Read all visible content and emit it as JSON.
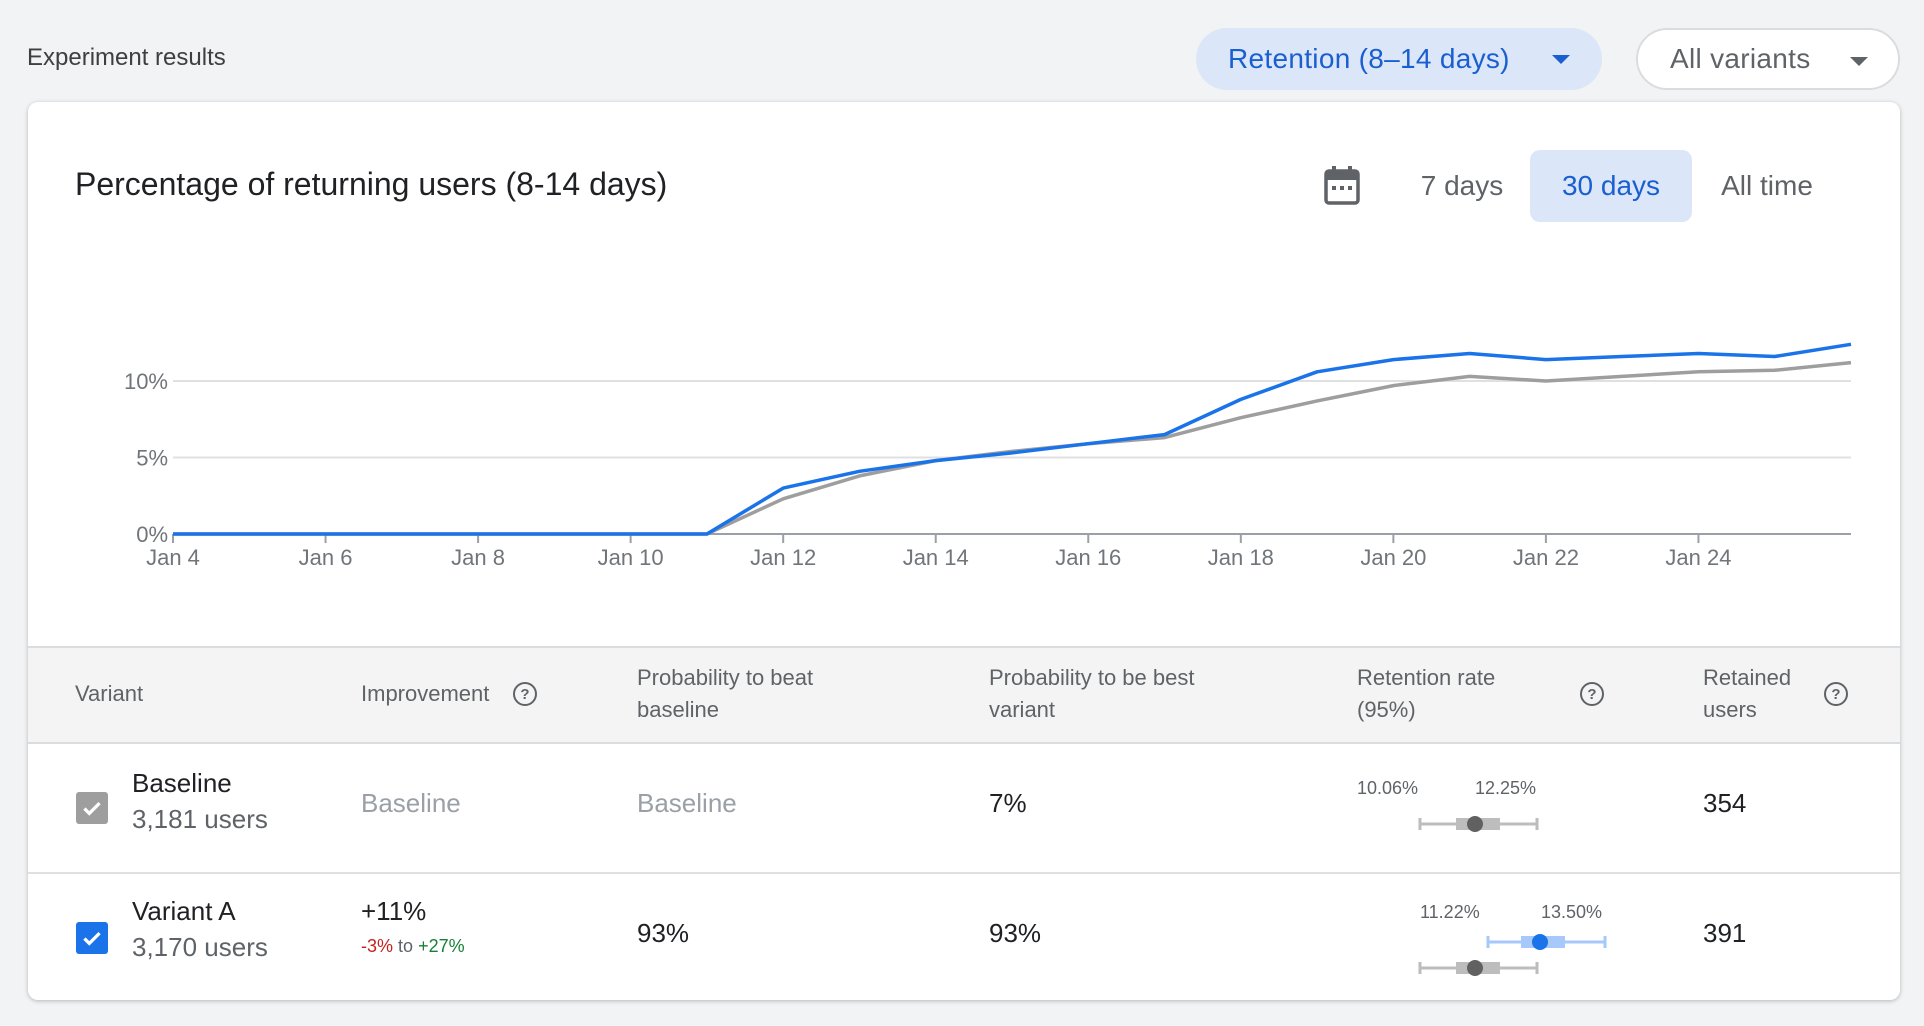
{
  "header": {
    "title": "Experiment results",
    "metric_dropdown": "Retention (8–14 days)",
    "variant_dropdown": "All variants"
  },
  "chart_card": {
    "title": "Percentage of returning users (8-14 days)",
    "calendar_icon": "calendar-icon",
    "ranges": [
      "7 days",
      "30 days",
      "All time"
    ],
    "selected_range": "30 days"
  },
  "colors": {
    "variant_a": "#1a73e8",
    "baseline": "#9e9e9e",
    "accent_bg": "#dbe6f8",
    "negative": "#c5221f",
    "positive": "#188038"
  },
  "chart_data": {
    "type": "line",
    "title": "Percentage of returning users (8-14 days)",
    "xlabel": "",
    "ylabel": "",
    "x": [
      "Jan 4",
      "Jan 5",
      "Jan 6",
      "Jan 7",
      "Jan 8",
      "Jan 9",
      "Jan 10",
      "Jan 11",
      "Jan 12",
      "Jan 13",
      "Jan 14",
      "Jan 15",
      "Jan 16",
      "Jan 17",
      "Jan 18",
      "Jan 19",
      "Jan 20",
      "Jan 21",
      "Jan 22",
      "Jan 23",
      "Jan 24",
      "Jan 25",
      "Jan 26"
    ],
    "xticks": [
      "Jan 4",
      "Jan 6",
      "Jan 8",
      "Jan 10",
      "Jan 12",
      "Jan 14",
      "Jan 16",
      "Jan 18",
      "Jan 20",
      "Jan 22",
      "Jan 24"
    ],
    "yticks": [
      "0%",
      "5%",
      "10%"
    ],
    "ytick_values": [
      0,
      5,
      10
    ],
    "ylim": [
      0,
      13
    ],
    "grid": true,
    "series": [
      {
        "name": "Baseline",
        "values": [
          0,
          0,
          0,
          0,
          0,
          0,
          0,
          0,
          2.3,
          3.8,
          4.8,
          5.4,
          5.9,
          6.3,
          7.6,
          8.7,
          9.7,
          10.3,
          10.0,
          10.3,
          10.6,
          10.7,
          11.2
        ]
      },
      {
        "name": "Variant A",
        "values": [
          0,
          0,
          0,
          0,
          0,
          0,
          0,
          0,
          3.0,
          4.1,
          4.8,
          5.3,
          5.9,
          6.5,
          8.8,
          10.6,
          11.4,
          11.8,
          11.4,
          11.6,
          11.8,
          11.6,
          12.4
        ]
      }
    ]
  },
  "table": {
    "headers": {
      "variant": "Variant",
      "improvement": "Improvement",
      "prob_beat_1": "Probability to beat",
      "prob_beat_2": "baseline",
      "prob_best_1": "Probability to be best",
      "prob_best_2": "variant",
      "retention_1": "Retention rate",
      "retention_2": "(95%)",
      "retained_1": "Retained",
      "retained_2": "users",
      "help_glyph": "?"
    },
    "rows": [
      {
        "name": "Baseline",
        "users": "3,181 users",
        "improvement": "Baseline",
        "prob_beat": "Baseline",
        "prob_best": "7%",
        "ci_low": "10.06%",
        "ci_high": "12.25%",
        "ci_values": [
          10.06,
          11.15,
          12.25
        ],
        "retained": "354"
      },
      {
        "name": "Variant A",
        "users": "3,170 users",
        "improvement": "+11%",
        "improvement_low": "-3%",
        "improvement_to": "to",
        "improvement_high": "+27%",
        "prob_beat": "93%",
        "prob_best": "93%",
        "ci_low": "11.22%",
        "ci_high": "13.50%",
        "ci_values": [
          11.22,
          12.35,
          13.5
        ],
        "retained": "391"
      }
    ]
  }
}
